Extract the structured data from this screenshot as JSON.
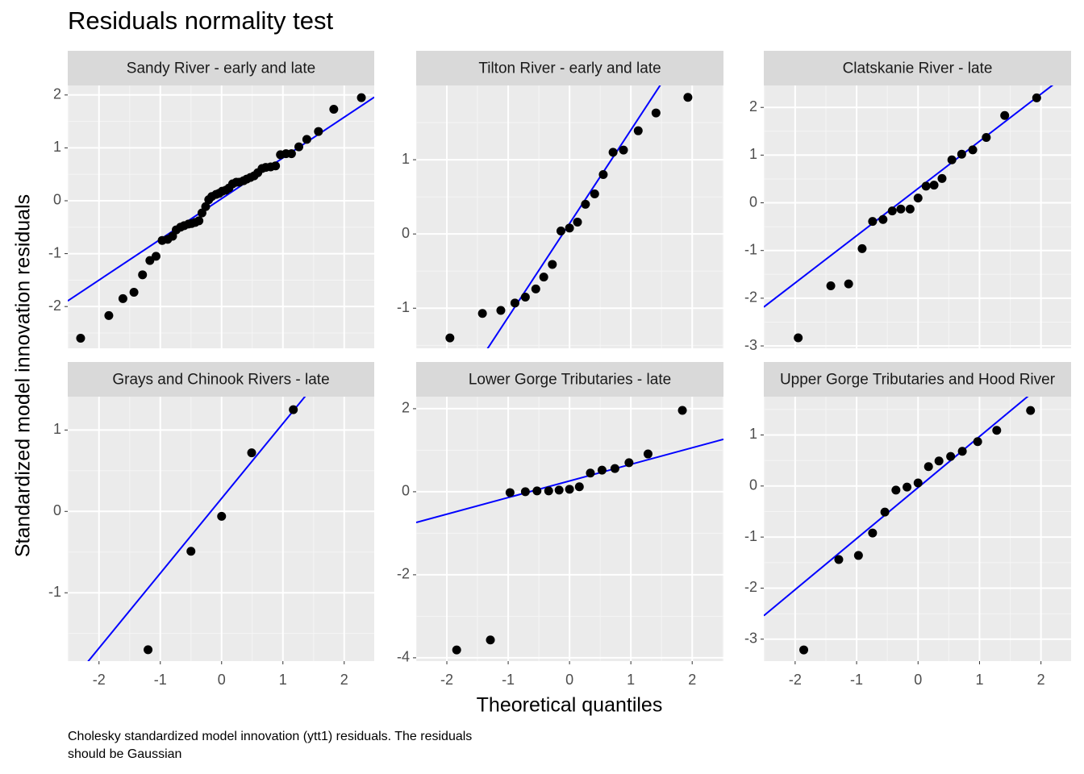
{
  "title": "Residuals normality test",
  "x_label": "Theoretical quantiles",
  "y_label": "Standardized model innovation residuals",
  "caption": [
    "Cholesky standardized model innovation (ytt1) residuals. The residuals",
    "should be Gaussian"
  ],
  "chart_data": [
    {
      "type": "scatter",
      "title": "Sandy River - early and late",
      "color": "#000000",
      "grid": true,
      "x": [
        -2.3,
        -1.84,
        -1.61,
        -1.43,
        -1.29,
        -1.17,
        -1.07,
        -0.97,
        -0.88,
        -0.8,
        -0.74,
        -0.67,
        -0.61,
        -0.54,
        -0.49,
        -0.43,
        -0.37,
        -0.32,
        -0.26,
        -0.21,
        -0.16,
        -0.09,
        -0.04,
        0.01,
        0.07,
        0.12,
        0.18,
        0.24,
        0.29,
        0.36,
        0.41,
        0.47,
        0.53,
        0.59,
        0.66,
        0.72,
        0.8,
        0.88,
        0.96,
        1.05,
        1.14,
        1.26,
        1.39,
        1.58,
        1.83,
        2.28
      ],
      "values": [
        -2.6,
        -2.17,
        -1.85,
        -1.73,
        -1.4,
        -1.13,
        -1.05,
        -0.75,
        -0.73,
        -0.67,
        -0.55,
        -0.5,
        -0.47,
        -0.44,
        -0.43,
        -0.41,
        -0.38,
        -0.23,
        -0.11,
        0.02,
        0.08,
        0.12,
        0.14,
        0.18,
        0.2,
        0.24,
        0.32,
        0.35,
        0.35,
        0.38,
        0.41,
        0.44,
        0.47,
        0.53,
        0.61,
        0.63,
        0.64,
        0.66,
        0.87,
        0.89,
        0.89,
        1.02,
        1.16,
        1.31,
        1.73,
        1.95
      ],
      "reference_line": {
        "slope": 0.77,
        "intercept": 0.04,
        "color": "#0000ff"
      },
      "xlim": [
        -2.51,
        2.49
      ],
      "xticks": [
        -2,
        -1,
        0,
        1,
        2
      ],
      "ylim": [
        -2.79,
        2.18
      ],
      "yticks": [
        -2,
        -1,
        0,
        1,
        2
      ]
    },
    {
      "type": "scatter",
      "title": "Tilton River - early and late",
      "color": "#000000",
      "grid": true,
      "x": [
        -1.95,
        -1.42,
        -1.12,
        -0.89,
        -0.72,
        -0.55,
        -0.42,
        -0.28,
        -0.14,
        0,
        0.13,
        0.26,
        0.41,
        0.55,
        0.71,
        0.88,
        1.12,
        1.41,
        1.93
      ],
      "values": [
        -1.4,
        -1.07,
        -1.03,
        -0.93,
        -0.85,
        -0.74,
        -0.58,
        -0.41,
        0.04,
        0.08,
        0.16,
        0.4,
        0.54,
        0.8,
        1.1,
        1.13,
        1.39,
        1.63,
        1.84
      ],
      "reference_line": {
        "slope": 1.26,
        "intercept": 0.14,
        "color": "#0000ff"
      },
      "xlim": [
        -2.5,
        2.51
      ],
      "xticks": [
        -2,
        -1,
        0,
        1,
        2
      ],
      "ylim": [
        -1.54,
        2.0
      ],
      "yticks": [
        -1,
        0,
        1
      ]
    },
    {
      "type": "scatter",
      "title": "Clatskanie River - late",
      "color": "#000000",
      "grid": true,
      "x": [
        -1.95,
        -1.42,
        -1.13,
        -0.91,
        -0.74,
        -0.57,
        -0.42,
        -0.28,
        -0.13,
        0,
        0.13,
        0.26,
        0.39,
        0.55,
        0.71,
        0.89,
        1.11,
        1.41,
        1.93
      ],
      "values": [
        -2.83,
        -1.74,
        -1.7,
        -0.96,
        -0.39,
        -0.35,
        -0.17,
        -0.13,
        -0.13,
        0.1,
        0.35,
        0.37,
        0.51,
        0.9,
        1.02,
        1.11,
        1.37,
        1.83,
        2.2
      ],
      "reference_line": {
        "slope": 0.99,
        "intercept": 0.3,
        "color": "#0000ff"
      },
      "xlim": [
        -2.51,
        2.49
      ],
      "xticks": [
        -2,
        -1,
        0,
        1,
        2
      ],
      "ylim": [
        -3.05,
        2.46
      ],
      "yticks": [
        -3,
        -2,
        -1,
        0,
        1,
        2
      ]
    },
    {
      "type": "scatter",
      "title": "Grays and Chinook Rivers - late",
      "color": "#000000",
      "grid": true,
      "x": [
        -1.2,
        -0.5,
        0,
        0.49,
        1.17
      ],
      "values": [
        -1.7,
        -0.49,
        -0.06,
        0.72,
        1.25
      ],
      "reference_line": {
        "slope": 0.92,
        "intercept": 0.16,
        "color": "#0000ff"
      },
      "xlim": [
        -2.51,
        2.49
      ],
      "xticks": [
        -2,
        -1,
        0,
        1,
        2
      ],
      "ylim": [
        -1.84,
        1.41
      ],
      "yticks": [
        -1,
        0,
        1
      ]
    },
    {
      "type": "scatter",
      "title": "Lower Gorge Tributaries - late",
      "color": "#000000",
      "grid": true,
      "x": [
        -1.84,
        -1.29,
        -0.97,
        -0.72,
        -0.53,
        -0.34,
        -0.17,
        0,
        0.16,
        0.34,
        0.53,
        0.74,
        0.97,
        1.28,
        1.84
      ],
      "values": [
        -3.81,
        -3.57,
        -0.02,
        0,
        0.02,
        0.02,
        0.04,
        0.06,
        0.12,
        0.45,
        0.52,
        0.56,
        0.7,
        0.91,
        1.96
      ],
      "reference_line": {
        "slope": 0.4,
        "intercept": 0.26,
        "color": "#0000ff"
      },
      "xlim": [
        -2.5,
        2.51
      ],
      "xticks": [
        -2,
        -1,
        0,
        1,
        2
      ],
      "ylim": [
        -4.08,
        2.29
      ],
      "yticks": [
        -4,
        -2,
        0,
        2
      ]
    },
    {
      "type": "scatter",
      "title": "Upper Gorge Tributaries and Hood River",
      "color": "#000000",
      "grid": true,
      "x": [
        -1.86,
        -1.29,
        -0.97,
        -0.74,
        -0.54,
        -0.36,
        -0.18,
        0,
        0.17,
        0.34,
        0.53,
        0.72,
        0.97,
        1.28,
        1.83
      ],
      "values": [
        -3.21,
        -1.44,
        -1.36,
        -0.92,
        -0.51,
        -0.08,
        -0.02,
        0.06,
        0.38,
        0.49,
        0.58,
        0.68,
        0.87,
        1.09,
        1.48
      ],
      "reference_line": {
        "slope": 1.0,
        "intercept": -0.03,
        "color": "#0000ff"
      },
      "xlim": [
        -2.51,
        2.49
      ],
      "xticks": [
        -2,
        -1,
        0,
        1,
        2
      ],
      "ylim": [
        -3.43,
        1.75
      ],
      "yticks": [
        -3,
        -2,
        -1,
        0,
        1
      ]
    }
  ]
}
